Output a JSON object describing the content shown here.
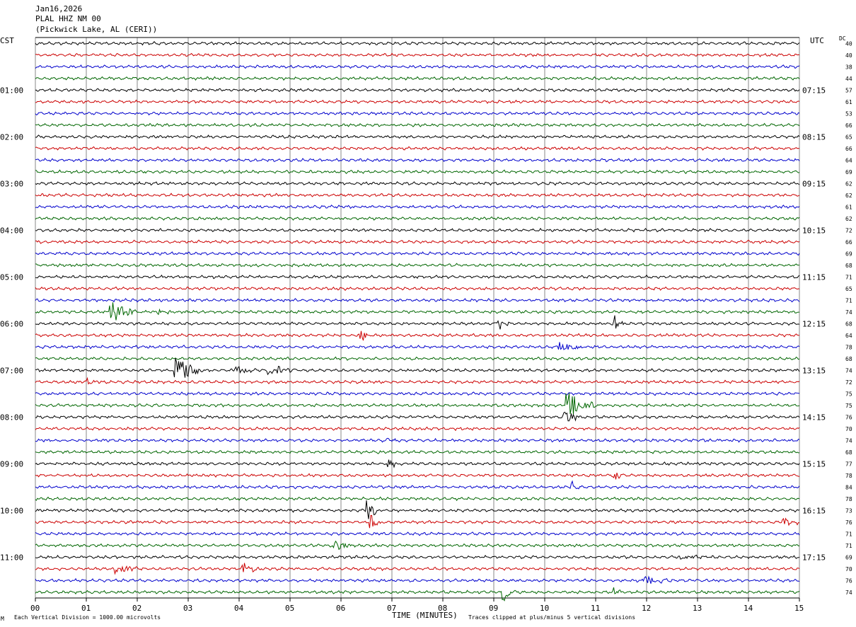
{
  "header": {
    "date": "Jan16,2026",
    "station": "PLAL HHZ NM 00",
    "location": "(Pickwick Lake, AL (CERI))"
  },
  "left_tz": "CST",
  "right_tz": "UTC",
  "dc_label": "DC",
  "footer": {
    "scale": "Each Vertical Division = 1000.00 microvolts",
    "clip": "Traces clipped at plus/minus 5 vertical divisions",
    "xlabel": "TIME (MINUTES)",
    "corner_mark": "M"
  },
  "trace_colors": [
    "#000000",
    "#cc0000",
    "#0000cc",
    "#006600"
  ],
  "chart_data": {
    "type": "line",
    "subtype": "helicorder",
    "xlabel": "TIME (MINUTES)",
    "x_ticks": [
      "00",
      "01",
      "02",
      "03",
      "04",
      "05",
      "06",
      "07",
      "08",
      "09",
      "10",
      "11",
      "12",
      "13",
      "14",
      "15"
    ],
    "xlim": [
      0,
      15
    ],
    "grid": true,
    "rows": 48,
    "left_hour_labels": [
      "01:00",
      "02:00",
      "03:00",
      "04:00",
      "05:00",
      "06:00",
      "07:00",
      "08:00",
      "09:00",
      "10:00",
      "11:00"
    ],
    "right_hour_labels": [
      "07:15",
      "08:15",
      "09:15",
      "10:15",
      "11:15",
      "12:15",
      "13:15",
      "14:15",
      "15:15",
      "16:15",
      "17:15"
    ],
    "label_every_rows": 4,
    "dc_offsets": [
      "40",
      "40",
      "38",
      "44",
      "57",
      "61",
      "53",
      "66",
      "65",
      "66",
      "64",
      "69",
      "62",
      "62",
      "61",
      "62",
      "72",
      "66",
      "69",
      "68",
      "71",
      "65",
      "71",
      "74",
      "68",
      "64",
      "78",
      "68",
      "74",
      "72",
      "75",
      "75",
      "76",
      "70",
      "74",
      "68",
      "77",
      "78",
      "84",
      "78",
      "73",
      "76",
      "71",
      "71",
      "69",
      "70",
      "76",
      "74"
    ],
    "events": [
      {
        "row": 23,
        "minute": 1.5,
        "amplitude": 2.0,
        "duration": 0.5
      },
      {
        "row": 23,
        "minute": 2.45,
        "amplitude": 0.6,
        "duration": 0.2
      },
      {
        "row": 24,
        "minute": 9.1,
        "amplitude": 1.5,
        "duration": 0.15
      },
      {
        "row": 24,
        "minute": 11.4,
        "amplitude": 1.4,
        "duration": 0.15
      },
      {
        "row": 25,
        "minute": 6.4,
        "amplitude": 2.4,
        "duration": 0.1
      },
      {
        "row": 26,
        "minute": 10.3,
        "amplitude": 1.3,
        "duration": 0.4
      },
      {
        "row": 28,
        "minute": 2.75,
        "amplitude": 3.0,
        "duration": 0.5
      },
      {
        "row": 28,
        "minute": 3.95,
        "amplitude": 1.0,
        "duration": 0.35
      },
      {
        "row": 28,
        "minute": 4.6,
        "amplitude": 1.0,
        "duration": 0.45
      },
      {
        "row": 29,
        "minute": 1.0,
        "amplitude": 0.7,
        "duration": 0.2
      },
      {
        "row": 31,
        "minute": 10.45,
        "amplitude": 2.6,
        "duration": 0.5
      },
      {
        "row": 32,
        "minute": 10.4,
        "amplitude": 1.6,
        "duration": 0.2
      },
      {
        "row": 34,
        "minute": 6.8,
        "amplitude": 0.6,
        "duration": 0.3
      },
      {
        "row": 36,
        "minute": 6.95,
        "amplitude": 0.9,
        "duration": 0.15
      },
      {
        "row": 37,
        "minute": 11.4,
        "amplitude": 1.2,
        "duration": 0.1
      },
      {
        "row": 38,
        "minute": 10.55,
        "amplitude": 1.3,
        "duration": 0.1
      },
      {
        "row": 40,
        "minute": 6.55,
        "amplitude": 2.0,
        "duration": 0.12
      },
      {
        "row": 41,
        "minute": 6.6,
        "amplitude": 1.6,
        "duration": 0.15
      },
      {
        "row": 41,
        "minute": 14.7,
        "amplitude": 0.7,
        "duration": 0.4
      },
      {
        "row": 43,
        "minute": 5.9,
        "amplitude": 0.8,
        "duration": 0.4
      },
      {
        "row": 44,
        "minute": 12.7,
        "amplitude": 0.6,
        "duration": 0.5
      },
      {
        "row": 45,
        "minute": 1.6,
        "amplitude": 0.8,
        "duration": 0.4
      },
      {
        "row": 45,
        "minute": 4.1,
        "amplitude": 1.3,
        "duration": 0.2
      },
      {
        "row": 46,
        "minute": 12.0,
        "amplitude": 0.8,
        "duration": 0.5
      },
      {
        "row": 47,
        "minute": 9.2,
        "amplitude": 1.6,
        "duration": 0.2
      },
      {
        "row": 47,
        "minute": 11.4,
        "amplitude": 1.1,
        "duration": 0.1
      }
    ]
  }
}
